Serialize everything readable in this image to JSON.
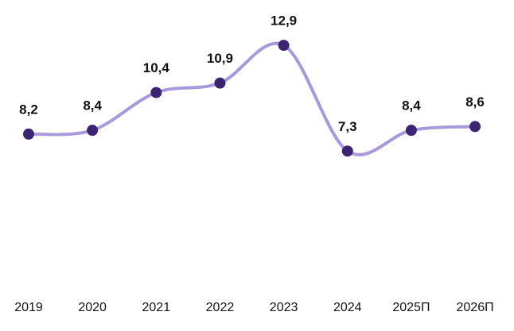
{
  "chart_data": {
    "type": "line",
    "categories": [
      "2019",
      "2020",
      "2021",
      "2022",
      "2023",
      "2024",
      "2025П",
      "2026П"
    ],
    "values": [
      8.2,
      8.4,
      10.4,
      10.9,
      12.9,
      7.3,
      8.4,
      8.6
    ],
    "value_labels": [
      "8,2",
      "8,4",
      "10,4",
      "10,9",
      "12,9",
      "7,3",
      "8,4",
      "8,6"
    ],
    "color": "#a898dc",
    "marker_color": "#3b2472",
    "ylim": [
      0,
      15.3
    ],
    "smooth": true
  }
}
